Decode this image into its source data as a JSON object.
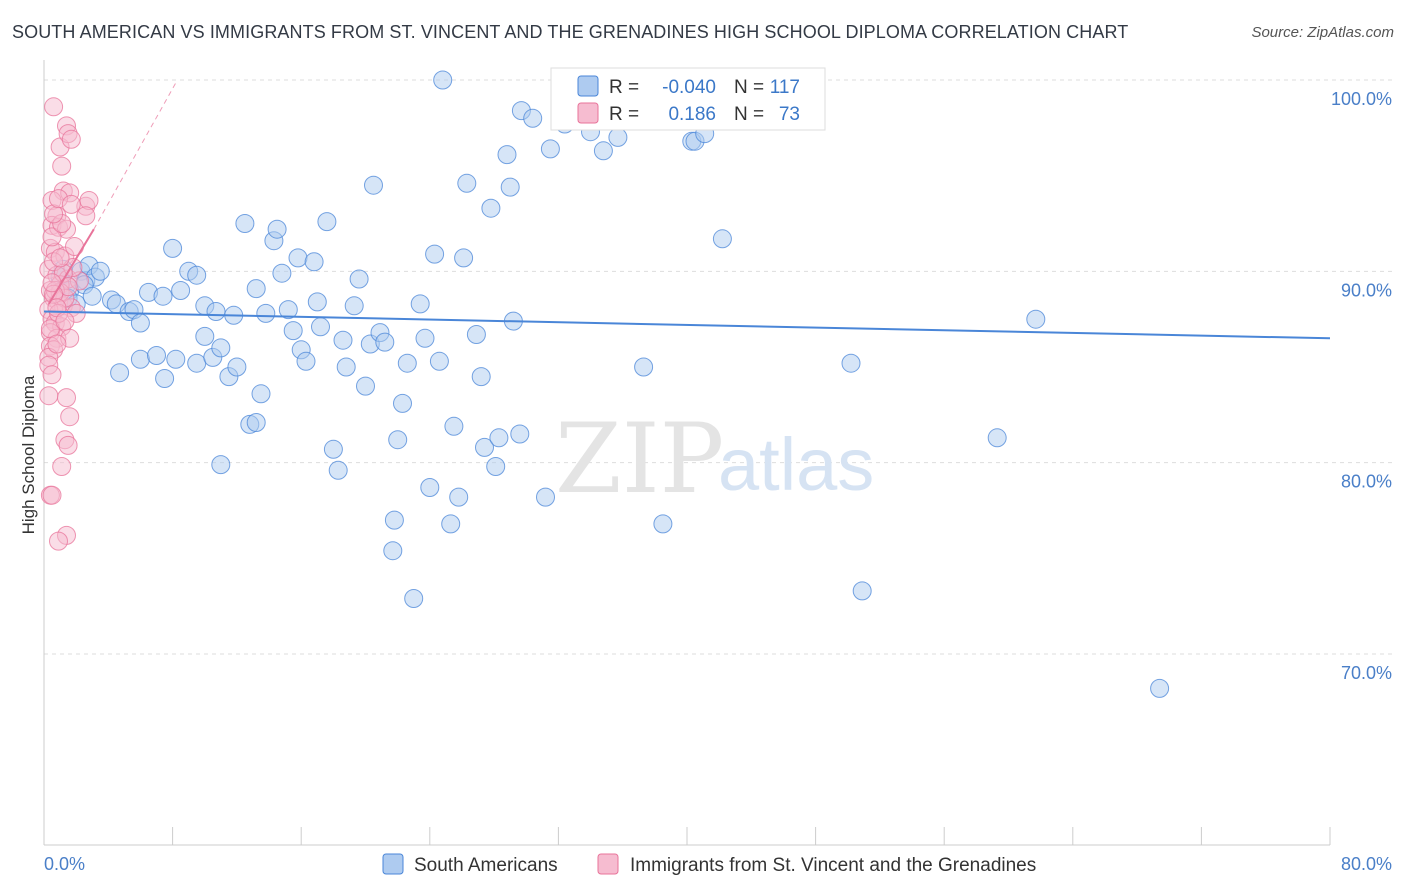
{
  "title": "SOUTH AMERICAN VS IMMIGRANTS FROM ST. VINCENT AND THE GRENADINES HIGH SCHOOL DIPLOMA CORRELATION CHART",
  "source": "Source: ZipAtlas.com",
  "watermark": {
    "zip": "ZIP",
    "atlas": "atlas"
  },
  "colors": {
    "blue": "#4a86d8",
    "pink": "#e8739a",
    "blue_fill": "#aecbf0",
    "pink_fill": "#f6bcd0"
  },
  "legend": {
    "blue": {
      "r_label": "R =",
      "r_value": "-0.040",
      "n_label": "N =",
      "n_value": "117"
    },
    "pink": {
      "r_label": "R =",
      "r_value": "0.186",
      "n_label": "N =",
      "n_value": "73"
    }
  },
  "bottom_legend": {
    "blue": "South Americans",
    "pink": "Immigrants from St. Vincent and the Grenadines"
  },
  "chart_data": {
    "type": "scatter",
    "title": "SOUTH AMERICAN VS IMMIGRANTS FROM ST. VINCENT AND THE GRENADINES HIGH SCHOOL DIPLOMA CORRELATION CHART",
    "xlabel": "",
    "ylabel": "High School Diploma",
    "xlim": [
      0,
      80
    ],
    "ylim": [
      60,
      102
    ],
    "x_ticks": [
      "0.0%",
      "80.0%"
    ],
    "y_ticks": [
      {
        "value": 100,
        "label": "100.0%"
      },
      {
        "value": 90,
        "label": "90.0%"
      },
      {
        "value": 80,
        "label": "80.0%"
      },
      {
        "value": 70,
        "label": "70.0%"
      }
    ],
    "grid": true,
    "legend_position": "top-center",
    "series": [
      {
        "name": "South Americans",
        "color": "#4a86d8",
        "trend": {
          "x": [
            0,
            80
          ],
          "y": [
            87.9,
            86.5
          ]
        },
        "points": [
          [
            1.0,
            89.7
          ],
          [
            1.4,
            89.3
          ],
          [
            1.6,
            89.0
          ],
          [
            1.5,
            88.6
          ],
          [
            2.0,
            88.3
          ],
          [
            2.3,
            90.0
          ],
          [
            2.6,
            89.5
          ],
          [
            2.8,
            90.3
          ],
          [
            3.2,
            89.7
          ],
          [
            3.5,
            90.0
          ],
          [
            4.2,
            88.5
          ],
          [
            4.5,
            88.3
          ],
          [
            5.3,
            87.9
          ],
          [
            5.6,
            88.0
          ],
          [
            6.0,
            87.3
          ],
          [
            6.5,
            88.9
          ],
          [
            6.0,
            85.4
          ],
          [
            7.0,
            85.6
          ],
          [
            7.5,
            84.4
          ],
          [
            4.7,
            84.7
          ],
          [
            8.0,
            91.2
          ],
          [
            8.2,
            85.4
          ],
          [
            8.5,
            89.0
          ],
          [
            9.0,
            90.0
          ],
          [
            9.5,
            85.2
          ],
          [
            9.5,
            89.8
          ],
          [
            10.0,
            86.6
          ],
          [
            10.0,
            88.2
          ],
          [
            10.5,
            85.5
          ],
          [
            10.7,
            87.9
          ],
          [
            11.0,
            86.0
          ],
          [
            11.5,
            84.5
          ],
          [
            11.8,
            87.7
          ],
          [
            12.0,
            85.0
          ],
          [
            11.0,
            79.9
          ],
          [
            12.5,
            92.5
          ],
          [
            12.8,
            82.0
          ],
          [
            13.2,
            82.1
          ],
          [
            13.5,
            83.6
          ],
          [
            13.8,
            87.8
          ],
          [
            14.3,
            91.6
          ],
          [
            14.5,
            92.2
          ],
          [
            14.8,
            89.9
          ],
          [
            15.2,
            88.0
          ],
          [
            15.5,
            86.9
          ],
          [
            15.8,
            90.7
          ],
          [
            16.0,
            85.9
          ],
          [
            16.3,
            85.3
          ],
          [
            16.8,
            90.5
          ],
          [
            17.0,
            88.4
          ],
          [
            17.2,
            87.1
          ],
          [
            17.6,
            92.6
          ],
          [
            18.0,
            80.7
          ],
          [
            18.3,
            79.6
          ],
          [
            18.6,
            86.4
          ],
          [
            18.8,
            85.0
          ],
          [
            19.3,
            88.2
          ],
          [
            19.6,
            89.6
          ],
          [
            20.0,
            84.0
          ],
          [
            20.3,
            86.2
          ],
          [
            20.5,
            94.5
          ],
          [
            20.9,
            86.8
          ],
          [
            21.2,
            86.3
          ],
          [
            21.7,
            75.4
          ],
          [
            21.8,
            77.0
          ],
          [
            22.0,
            81.2
          ],
          [
            22.3,
            83.1
          ],
          [
            22.6,
            85.2
          ],
          [
            23.0,
            72.9
          ],
          [
            23.4,
            88.3
          ],
          [
            23.7,
            86.5
          ],
          [
            24.0,
            78.7
          ],
          [
            24.3,
            90.9
          ],
          [
            24.6,
            85.3
          ],
          [
            24.8,
            100.0
          ],
          [
            25.3,
            76.8
          ],
          [
            25.5,
            81.9
          ],
          [
            25.8,
            78.2
          ],
          [
            26.1,
            90.7
          ],
          [
            26.3,
            94.6
          ],
          [
            26.9,
            86.7
          ],
          [
            27.2,
            84.5
          ],
          [
            27.4,
            80.8
          ],
          [
            27.8,
            93.3
          ],
          [
            28.1,
            79.8
          ],
          [
            28.3,
            81.3
          ],
          [
            28.8,
            96.1
          ],
          [
            29.0,
            94.4
          ],
          [
            29.2,
            87.4
          ],
          [
            29.6,
            81.5
          ],
          [
            29.7,
            98.4
          ],
          [
            30.4,
            98.0
          ],
          [
            31.2,
            78.2
          ],
          [
            31.5,
            96.4
          ],
          [
            32.4,
            97.7
          ],
          [
            32.7,
            100.0
          ],
          [
            34.0,
            97.3
          ],
          [
            34.8,
            96.3
          ],
          [
            35.7,
            97.0
          ],
          [
            35.9,
            98.6
          ],
          [
            36.7,
            99.6
          ],
          [
            37.3,
            85.0
          ],
          [
            38.5,
            76.8
          ],
          [
            40.3,
            96.8
          ],
          [
            40.5,
            96.8
          ],
          [
            41.1,
            97.2
          ],
          [
            42.2,
            91.7
          ],
          [
            50.2,
            85.2
          ],
          [
            50.9,
            73.3
          ],
          [
            59.3,
            81.3
          ],
          [
            61.7,
            87.5
          ],
          [
            69.4,
            68.2
          ],
          [
            1.2,
            90.1
          ],
          [
            2.5,
            89.3
          ],
          [
            3.0,
            88.7
          ],
          [
            7.4,
            88.7
          ],
          [
            13.2,
            89.1
          ]
        ]
      },
      {
        "name": "Immigrants from St. Vincent and the Grenadines",
        "color": "#e8739a",
        "trend": {
          "x": [
            0.3,
            3.1
          ],
          "y": [
            88.3,
            92.2
          ]
        },
        "trend_ext": {
          "x": [
            3.1,
            8.3
          ],
          "y": [
            92.2,
            100.0
          ]
        },
        "points": [
          [
            0.6,
            98.6
          ],
          [
            1.0,
            96.5
          ],
          [
            1.1,
            95.5
          ],
          [
            1.4,
            97.6
          ],
          [
            1.5,
            97.2
          ],
          [
            1.7,
            96.9
          ],
          [
            1.2,
            94.2
          ],
          [
            1.6,
            94.1
          ],
          [
            0.5,
            93.7
          ],
          [
            0.8,
            92.9
          ],
          [
            0.5,
            92.4
          ],
          [
            0.9,
            92.3
          ],
          [
            2.6,
            93.4
          ],
          [
            2.8,
            93.7
          ],
          [
            2.6,
            92.9
          ],
          [
            1.4,
            92.2
          ],
          [
            0.4,
            91.2
          ],
          [
            0.7,
            91.0
          ],
          [
            1.3,
            90.8
          ],
          [
            1.9,
            91.3
          ],
          [
            0.3,
            90.1
          ],
          [
            0.8,
            89.8
          ],
          [
            1.5,
            89.6
          ],
          [
            1.0,
            89.3
          ],
          [
            0.4,
            89.0
          ],
          [
            0.6,
            88.6
          ],
          [
            0.9,
            88.4
          ],
          [
            1.2,
            88.2
          ],
          [
            1.7,
            88.1
          ],
          [
            2.0,
            87.8
          ],
          [
            0.3,
            88.0
          ],
          [
            0.5,
            87.5
          ],
          [
            0.7,
            87.3
          ],
          [
            1.1,
            87.1
          ],
          [
            0.4,
            86.8
          ],
          [
            0.8,
            86.5
          ],
          [
            1.6,
            86.5
          ],
          [
            0.4,
            86.1
          ],
          [
            0.6,
            85.9
          ],
          [
            0.3,
            85.5
          ],
          [
            0.3,
            85.1
          ],
          [
            0.5,
            84.6
          ],
          [
            1.4,
            83.4
          ],
          [
            0.3,
            83.5
          ],
          [
            1.6,
            82.4
          ],
          [
            1.3,
            81.2
          ],
          [
            1.5,
            80.9
          ],
          [
            1.1,
            79.8
          ],
          [
            0.4,
            78.3
          ],
          [
            0.5,
            78.3
          ],
          [
            1.4,
            76.2
          ],
          [
            0.9,
            75.9
          ],
          [
            2.2,
            89.5
          ],
          [
            1.8,
            90.2
          ],
          [
            0.6,
            90.5
          ],
          [
            1.0,
            88.9
          ],
          [
            1.3,
            88.6
          ],
          [
            0.7,
            89.0
          ],
          [
            0.9,
            87.8
          ],
          [
            1.2,
            89.9
          ],
          [
            0.5,
            91.8
          ],
          [
            1.1,
            92.5
          ],
          [
            0.6,
            93.0
          ],
          [
            0.9,
            93.8
          ],
          [
            1.7,
            93.5
          ],
          [
            0.4,
            87.0
          ],
          [
            0.8,
            86.2
          ],
          [
            1.5,
            89.2
          ],
          [
            0.6,
            88.8
          ],
          [
            1.0,
            90.7
          ],
          [
            0.5,
            89.4
          ],
          [
            0.8,
            88.1
          ],
          [
            1.3,
            87.4
          ]
        ]
      }
    ]
  }
}
